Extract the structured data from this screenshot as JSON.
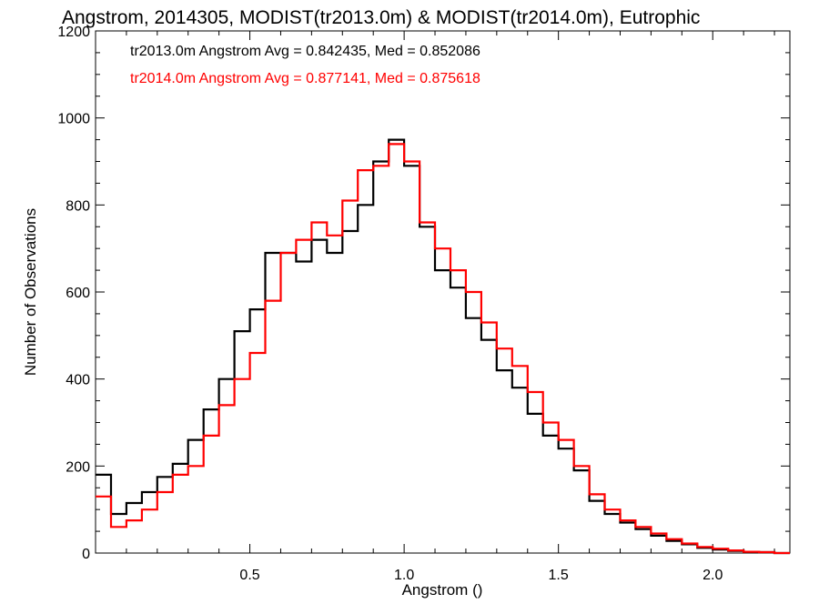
{
  "chart_data": {
    "type": "line",
    "title": "Angstrom, 2014305, MODIST(tr2013.0m) & MODIST(tr2014.0m), Eutrophic",
    "xlabel": "Angstrom ()",
    "ylabel": "Number of Observations",
    "xlim": [
      0.0,
      2.25
    ],
    "ylim": [
      0,
      1200
    ],
    "x_ticks": [
      0.5,
      1.0,
      1.5,
      2.0
    ],
    "x_tick_labels": [
      "0.5",
      "1.0",
      "1.5",
      "2.0"
    ],
    "y_ticks": [
      0,
      200,
      400,
      600,
      800,
      1000,
      1200
    ],
    "y_tick_labels": [
      "0",
      "200",
      "400",
      "600",
      "800",
      "1000",
      "1200"
    ],
    "grid": false,
    "annotations": [
      {
        "text": "tr2013.0m Angstrom Avg = 0.842435, Med = 0.852086",
        "color": "#000000"
      },
      {
        "text": "tr2014.0m Angstrom Avg = 0.877141, Med = 0.875618",
        "color": "#ff0000"
      }
    ],
    "x": [
      0.0,
      0.05,
      0.1,
      0.15,
      0.2,
      0.25,
      0.3,
      0.35,
      0.4,
      0.45,
      0.5,
      0.55,
      0.6,
      0.65,
      0.7,
      0.75,
      0.8,
      0.85,
      0.9,
      0.95,
      1.0,
      1.05,
      1.1,
      1.15,
      1.2,
      1.25,
      1.3,
      1.35,
      1.4,
      1.45,
      1.5,
      1.55,
      1.6,
      1.65,
      1.7,
      1.75,
      1.8,
      1.85,
      1.9,
      1.95,
      2.0,
      2.05,
      2.1,
      2.15,
      2.2
    ],
    "series": [
      {
        "name": "tr2013.0m",
        "color": "#000000",
        "values": [
          180,
          90,
          115,
          140,
          175,
          205,
          260,
          330,
          400,
          510,
          560,
          690,
          690,
          670,
          720,
          690,
          740,
          800,
          900,
          950,
          890,
          750,
          650,
          610,
          540,
          490,
          420,
          380,
          320,
          270,
          240,
          190,
          120,
          90,
          70,
          55,
          40,
          28,
          20,
          12,
          8,
          5,
          3,
          2,
          0
        ]
      },
      {
        "name": "tr2014.0m",
        "color": "#ff0000",
        "values": [
          130,
          60,
          75,
          100,
          140,
          180,
          200,
          270,
          340,
          400,
          460,
          580,
          690,
          720,
          760,
          730,
          810,
          880,
          890,
          940,
          900,
          760,
          700,
          650,
          600,
          530,
          470,
          430,
          370,
          300,
          260,
          200,
          135,
          100,
          75,
          60,
          45,
          32,
          22,
          14,
          10,
          6,
          3,
          2,
          0
        ]
      }
    ]
  }
}
